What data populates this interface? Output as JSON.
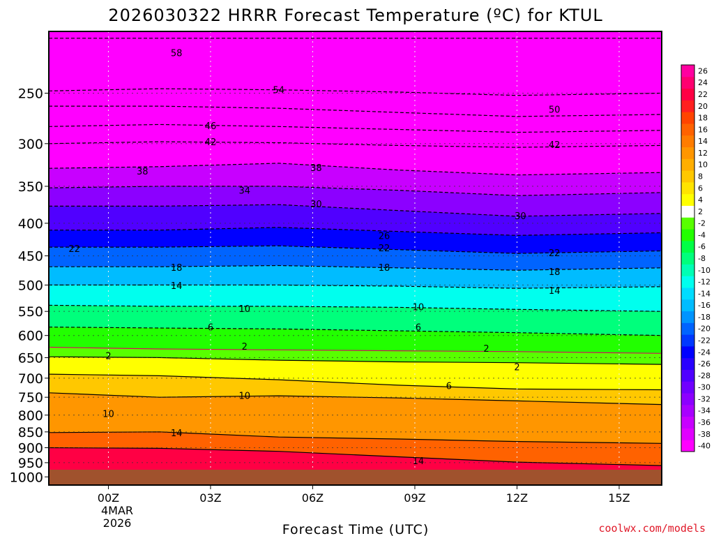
{
  "chart_data": {
    "type": "heatmap",
    "title": "2026030322 HRRR Forecast Temperature (ºC) for KTUL",
    "xlabel": "Forecast Time (UTC)",
    "ylabel": "",
    "x_range_hours": [
      -1.75,
      16.25
    ],
    "x_ticks": [
      {
        "hour": 0,
        "label": "00Z"
      },
      {
        "hour": 3,
        "label": "03Z"
      },
      {
        "hour": 6,
        "label": "06Z"
      },
      {
        "hour": 9,
        "label": "09Z"
      },
      {
        "hour": 12,
        "label": "12Z"
      },
      {
        "hour": 15,
        "label": "15Z"
      }
    ],
    "date_label": [
      "4MAR",
      "2026"
    ],
    "y_axis": {
      "scale": "log-pressure",
      "unit": "hPa",
      "range": [
        1030,
        200
      ],
      "ticks": [
        250,
        300,
        350,
        400,
        450,
        500,
        550,
        600,
        650,
        700,
        750,
        800,
        850,
        900,
        950,
        1000
      ]
    },
    "ground_level_hpa": 990,
    "grid": true,
    "colorbar": {
      "position": "right",
      "colors": [
        "#ff00ff",
        "#e000ff",
        "#c800ff",
        "#a800ff",
        "#8c00ff",
        "#7000ff",
        "#5000ff",
        "#2800ff",
        "#0000ff",
        "#0038ff",
        "#0064ff",
        "#0094ff",
        "#00bcff",
        "#00ddff",
        "#00ffee",
        "#00ffb4",
        "#00ff7c",
        "#00ff46",
        "#22ff00",
        "#58ff00",
        "#ffffff",
        "#ffff00",
        "#ffe400",
        "#ffc800",
        "#ffae00",
        "#ff9600",
        "#ff7c00",
        "#ff6200",
        "#ff4400",
        "#ff2020",
        "#ff0044",
        "#ff0070",
        "#ff00a0"
      ],
      "labels": [
        "-40",
        "-38",
        "-36",
        "-34",
        "-32",
        "-30",
        "-28",
        "-26",
        "-24",
        "-22",
        "-20",
        "-18",
        "-16",
        "-14",
        "-12",
        "-10",
        "-8",
        "-6",
        "-4",
        "-2",
        "2",
        "4",
        "6",
        "8",
        "10",
        "12",
        "14",
        "16",
        "18",
        "20",
        "22",
        "24",
        "26"
      ]
    },
    "isotherms_sampled": [
      {
        "value": -58,
        "p_at_times": [
          205,
          205,
          205,
          205,
          205,
          205
        ]
      },
      {
        "value": -54,
        "p_at_times": [
          248,
          246,
          247,
          249,
          252,
          250
        ]
      },
      {
        "value": -50,
        "p_at_times": [
          262,
          262,
          264,
          268,
          272,
          270
        ]
      },
      {
        "value": -46,
        "p_at_times": [
          282,
          280,
          282,
          285,
          288,
          286
        ]
      },
      {
        "value": -42,
        "p_at_times": [
          300,
          298,
          299,
          302,
          304,
          302
        ]
      },
      {
        "value": -38,
        "p_at_times": [
          328,
          326,
          322,
          330,
          336,
          333
        ]
      },
      {
        "value": -34,
        "p_at_times": [
          352,
          350,
          350,
          355,
          362,
          358
        ]
      },
      {
        "value": -30,
        "p_at_times": [
          376,
          376,
          374,
          382,
          390,
          386
        ]
      },
      {
        "value": -26,
        "p_at_times": [
          410,
          410,
          406,
          412,
          418,
          414
        ]
      },
      {
        "value": -22,
        "p_at_times": [
          436,
          436,
          434,
          440,
          446,
          442
        ]
      },
      {
        "value": -18,
        "p_at_times": [
          468,
          468,
          466,
          470,
          474,
          470
        ]
      },
      {
        "value": -14,
        "p_at_times": [
          500,
          500,
          500,
          502,
          506,
          503
        ]
      },
      {
        "value": -10,
        "p_at_times": [
          538,
          540,
          540,
          542,
          546,
          550
        ]
      },
      {
        "value": -6,
        "p_at_times": [
          582,
          584,
          586,
          590,
          594,
          600
        ]
      },
      {
        "value": -2,
        "p_at_times": [
          626,
          630,
          632,
          634,
          636,
          640
        ]
      },
      {
        "value": 2,
        "p_at_times": [
          648,
          650,
          656,
          660,
          662,
          666
        ]
      },
      {
        "value": 6,
        "p_at_times": [
          690,
          694,
          704,
          718,
          728,
          730
        ]
      },
      {
        "value": 10,
        "p_at_times": [
          738,
          750,
          746,
          752,
          760,
          770
        ]
      },
      {
        "value": 14,
        "p_at_times": [
          852,
          850,
          866,
          872,
          880,
          886
        ]
      },
      {
        "value": 18,
        "p_at_times": [
          900,
          902,
          912,
          930,
          948,
          960
        ]
      }
    ],
    "contour_labels": [
      {
        "text": "58",
        "hour": 2.0,
        "p": 216
      },
      {
        "text": "54",
        "hour": 5.0,
        "p": 247
      },
      {
        "text": "50",
        "hour": 13.1,
        "p": 265
      },
      {
        "text": "46",
        "hour": 3.0,
        "p": 281
      },
      {
        "text": "42",
        "hour": 3.0,
        "p": 298
      },
      {
        "text": "42",
        "hour": 13.1,
        "p": 301
      },
      {
        "text": "38",
        "hour": 1.0,
        "p": 331
      },
      {
        "text": "38",
        "hour": 6.1,
        "p": 327
      },
      {
        "text": "34",
        "hour": 4.0,
        "p": 355
      },
      {
        "text": "30",
        "hour": 6.1,
        "p": 373
      },
      {
        "text": "30",
        "hour": 12.1,
        "p": 389
      },
      {
        "text": "26",
        "hour": 8.1,
        "p": 418
      },
      {
        "text": "22",
        "hour": -1.0,
        "p": 438
      },
      {
        "text": "22",
        "hour": 8.1,
        "p": 437
      },
      {
        "text": "22",
        "hour": 13.1,
        "p": 445
      },
      {
        "text": "18",
        "hour": 2.0,
        "p": 469
      },
      {
        "text": "18",
        "hour": 8.1,
        "p": 469
      },
      {
        "text": "18",
        "hour": 13.1,
        "p": 476
      },
      {
        "text": "14",
        "hour": 2.0,
        "p": 501
      },
      {
        "text": "14",
        "hour": 13.1,
        "p": 510
      },
      {
        "text": "10",
        "hour": 4.0,
        "p": 544
      },
      {
        "text": "10",
        "hour": 9.1,
        "p": 541
      },
      {
        "text": "6",
        "hour": 3.0,
        "p": 582
      },
      {
        "text": "6",
        "hour": 9.1,
        "p": 582
      },
      {
        "text": "2",
        "hour": 4.0,
        "p": 624
      },
      {
        "text": "2",
        "hour": 11.1,
        "p": 628
      },
      {
        "text": "2",
        "hour": 0.0,
        "p": 645
      },
      {
        "text": "2",
        "hour": 12.0,
        "p": 672
      },
      {
        "text": "6",
        "hour": 10.0,
        "p": 719
      },
      {
        "text": "10",
        "hour": 4.0,
        "p": 745
      },
      {
        "text": "10",
        "hour": 0.0,
        "p": 795
      },
      {
        "text": "14",
        "hour": 2.0,
        "p": 852
      },
      {
        "text": "14",
        "hour": 9.1,
        "p": 943
      }
    ],
    "credit": "coolwx.com/models"
  }
}
